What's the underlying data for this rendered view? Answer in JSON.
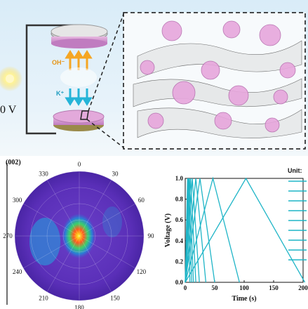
{
  "schematic": {
    "voltage_label": "0 V",
    "ion_top_label": "OH⁻",
    "ion_bottom_label": "K⁺"
  },
  "polar": {
    "title": "(002)",
    "angle_labels": [
      "0",
      "30",
      "60",
      "90",
      "120",
      "150",
      "180",
      "210",
      "240",
      "270",
      "300",
      "330"
    ]
  },
  "gcd": {
    "unit_label": "Unit:",
    "x_ticks": [
      "0",
      "50",
      "100",
      "150",
      "200"
    ],
    "y_ticks": [
      "0.0",
      "0.2",
      "0.4",
      "0.6",
      "0.8",
      "1.0"
    ],
    "xlabel": "Time (s)",
    "ylabel": "Voltage (V)"
  },
  "chart_data": {
    "type": "line",
    "xlabel": "Time (s)",
    "ylabel": "Voltage (V)",
    "xlim": [
      0,
      200
    ],
    "ylim": [
      0,
      1.0
    ],
    "color": "#1fb5c7",
    "series": [
      {
        "x": [
          0,
          4,
          8
        ],
        "y": [
          0,
          1.0,
          0
        ]
      },
      {
        "x": [
          0,
          5.5,
          11
        ],
        "y": [
          0,
          1.0,
          0
        ]
      },
      {
        "x": [
          0,
          7,
          14
        ],
        "y": [
          0,
          1.0,
          0
        ]
      },
      {
        "x": [
          0,
          9,
          18
        ],
        "y": [
          0,
          1.0,
          0
        ]
      },
      {
        "x": [
          0,
          12,
          24
        ],
        "y": [
          0,
          1.0,
          0
        ]
      },
      {
        "x": [
          0,
          18,
          35
        ],
        "y": [
          0,
          1.0,
          0
        ]
      },
      {
        "x": [
          0,
          25,
          50
        ],
        "y": [
          0,
          1.0,
          0
        ]
      },
      {
        "x": [
          0,
          47,
          92
        ],
        "y": [
          0,
          1.0,
          0
        ]
      },
      {
        "x": [
          0,
          103,
          203
        ],
        "y": [
          0,
          1.0,
          0
        ]
      }
    ]
  }
}
